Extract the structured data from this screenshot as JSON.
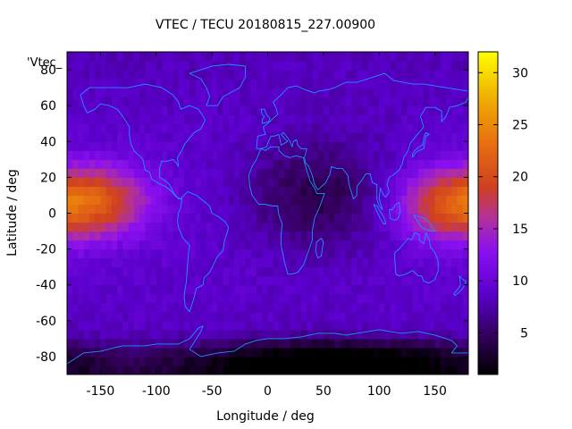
{
  "title": "VTEC / TECU 20180815_227.00900",
  "key_label": "'Vtec_",
  "xlabel": "Longitude / deg",
  "ylabel": "Latitude / deg",
  "colors": {
    "coastline": "#1e90ff",
    "palette": [
      "#000000",
      "#33005a",
      "#5a00cc",
      "#8a10f0",
      "#b030a0",
      "#d04020",
      "#e87010",
      "#f0b000",
      "#ffff00"
    ]
  },
  "chart_data": {
    "type": "heatmap",
    "title": "VTEC / TECU 20180815_227.00900",
    "xlabel": "Longitude / deg",
    "ylabel": "Latitude / deg",
    "xlim": [
      -180,
      180
    ],
    "ylim": [
      -90,
      90
    ],
    "x_ticks": [
      -150,
      -100,
      -50,
      0,
      50,
      100,
      150
    ],
    "y_ticks": [
      -80,
      -60,
      -40,
      -20,
      0,
      20,
      40,
      60,
      80
    ],
    "colorbar": {
      "range": [
        1,
        32
      ],
      "ticks": [
        5,
        10,
        15,
        20,
        25,
        30
      ]
    },
    "grid": false,
    "features": [
      {
        "region": "central-pacific equatorial band",
        "lon_center": -150,
        "lat_center": 7,
        "peak_value": 18
      },
      {
        "region": "western-pacific equatorial band",
        "lon_center": 160,
        "lat_center": 5,
        "peak_value": 18
      },
      {
        "region": "africa / indian ocean minimum",
        "lon_center": 45,
        "lat_center": 10,
        "min_value": 3
      },
      {
        "region": "antarctic minimum",
        "lon_center": 60,
        "lat_center": -82,
        "min_value": 1
      }
    ],
    "background_value": 8
  }
}
